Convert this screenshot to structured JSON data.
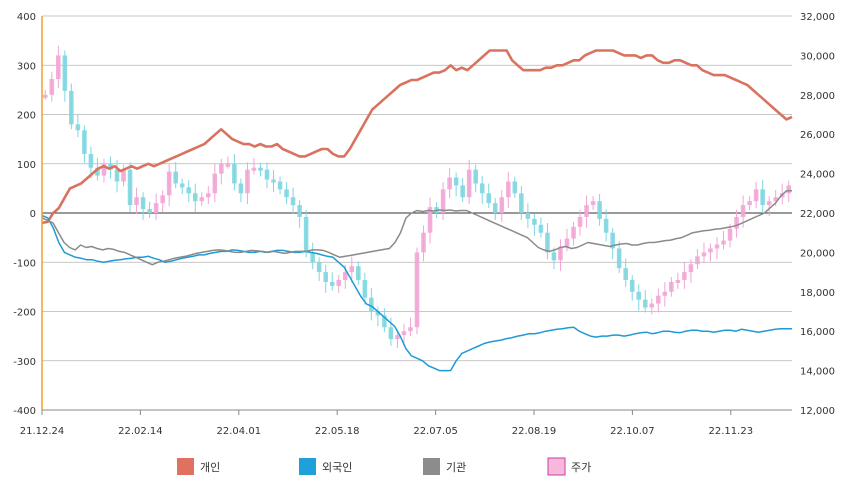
{
  "chart_data": {
    "type": "line",
    "x_tick_labels": [
      "21.12.24",
      "22.02.14",
      "22.04.01",
      "22.05.18",
      "22.07.05",
      "22.08.19",
      "22.10.07",
      "22.11.23"
    ],
    "y_left": {
      "ticks": [
        "400",
        "300",
        "200",
        "100",
        "0",
        "-100",
        "-200",
        "-300",
        "-400"
      ],
      "range": [
        -400,
        400
      ]
    },
    "y_right": {
      "ticks": [
        "32,000",
        "30,000",
        "28,000",
        "26,000",
        "24,000",
        "22,000",
        "20,000",
        "18,000",
        "16,000",
        "14,000",
        "12,000"
      ],
      "range": [
        12000,
        32000
      ]
    },
    "grid": true,
    "legend": {
      "placement": "bottom",
      "items": [
        {
          "label": "개인",
          "color": "#e07060"
        },
        {
          "label": "외국인",
          "color": "#1fa0d8"
        },
        {
          "label": "기관",
          "color": "#8c8c8c"
        },
        {
          "label": "주가",
          "color": "#f7b8dc"
        }
      ]
    },
    "series": [
      {
        "name": "개인",
        "axis": "left",
        "color": "#d9725f",
        "values": [
          -20,
          -18,
          0,
          10,
          30,
          50,
          55,
          60,
          70,
          80,
          90,
          95,
          90,
          95,
          85,
          90,
          95,
          90,
          95,
          100,
          95,
          100,
          105,
          110,
          115,
          120,
          125,
          130,
          135,
          140,
          150,
          160,
          170,
          160,
          150,
          145,
          140,
          140,
          135,
          140,
          135,
          135,
          140,
          130,
          125,
          120,
          115,
          115,
          120,
          125,
          130,
          130,
          120,
          115,
          115,
          130,
          150,
          170,
          190,
          210,
          220,
          230,
          240,
          250,
          260,
          265,
          270,
          270,
          275,
          280,
          285,
          285,
          290,
          300,
          290,
          295,
          290,
          300,
          310,
          320,
          330,
          330,
          330,
          330,
          310,
          300,
          290,
          290,
          290,
          290,
          295,
          295,
          300,
          300,
          305,
          310,
          310,
          320,
          325,
          330,
          330,
          330,
          330,
          325,
          320,
          320,
          320,
          315,
          320,
          320,
          310,
          305,
          305,
          310,
          310,
          305,
          300,
          300,
          290,
          285,
          280,
          280,
          280,
          275,
          270,
          265,
          260,
          250,
          240,
          230,
          220,
          210,
          200,
          190,
          195
        ]
      },
      {
        "name": "외국인",
        "axis": "left",
        "color": "#1e9bd5",
        "values": [
          -5,
          -10,
          -30,
          -60,
          -80,
          -85,
          -90,
          -92,
          -95,
          -95,
          -98,
          -100,
          -98,
          -96,
          -95,
          -93,
          -92,
          -90,
          -90,
          -88,
          -92,
          -95,
          -100,
          -98,
          -95,
          -92,
          -90,
          -88,
          -85,
          -85,
          -82,
          -80,
          -78,
          -78,
          -75,
          -76,
          -78,
          -80,
          -80,
          -78,
          -80,
          -78,
          -76,
          -76,
          -78,
          -80,
          -80,
          -78,
          -80,
          -82,
          -85,
          -88,
          -90,
          -100,
          -110,
          -130,
          -150,
          -170,
          -185,
          -190,
          -200,
          -210,
          -220,
          -230,
          -250,
          -275,
          -290,
          -295,
          -300,
          -310,
          -315,
          -320,
          -320,
          -320,
          -300,
          -285,
          -280,
          -275,
          -270,
          -265,
          -262,
          -260,
          -258,
          -255,
          -253,
          -250,
          -248,
          -245,
          -245,
          -243,
          -240,
          -238,
          -236,
          -235,
          -233,
          -232,
          -240,
          -245,
          -250,
          -252,
          -250,
          -250,
          -248,
          -248,
          -250,
          -248,
          -245,
          -243,
          -242,
          -245,
          -243,
          -240,
          -240,
          -242,
          -243,
          -240,
          -238,
          -238,
          -240,
          -240,
          -242,
          -240,
          -238,
          -238,
          -240,
          -236,
          -238,
          -240,
          -242,
          -240,
          -238,
          -236,
          -235,
          -235,
          -235
        ]
      },
      {
        "name": "기관",
        "axis": "left",
        "color": "#8a8a8a",
        "values": [
          -10,
          -15,
          -20,
          -40,
          -60,
          -70,
          -75,
          -65,
          -70,
          -68,
          -72,
          -75,
          -72,
          -74,
          -78,
          -80,
          -85,
          -90,
          -95,
          -100,
          -105,
          -100,
          -98,
          -95,
          -92,
          -90,
          -88,
          -85,
          -82,
          -80,
          -78,
          -76,
          -75,
          -76,
          -78,
          -80,
          -80,
          -78,
          -76,
          -77,
          -78,
          -80,
          -78,
          -80,
          -82,
          -80,
          -78,
          -78,
          -78,
          -75,
          -75,
          -76,
          -80,
          -85,
          -90,
          -88,
          -86,
          -84,
          -82,
          -80,
          -78,
          -76,
          -74,
          -72,
          -60,
          -40,
          -10,
          0,
          5,
          3,
          5,
          4,
          6,
          5,
          6,
          4,
          5,
          5,
          0,
          -5,
          -10,
          -15,
          -20,
          -25,
          -30,
          -35,
          -40,
          -45,
          -50,
          -60,
          -70,
          -75,
          -78,
          -75,
          -70,
          -68,
          -72,
          -70,
          -65,
          -60,
          -62,
          -64,
          -66,
          -68,
          -65,
          -63,
          -62,
          -65,
          -65,
          -62,
          -60,
          -60,
          -58,
          -56,
          -55,
          -52,
          -50,
          -45,
          -40,
          -38,
          -36,
          -35,
          -33,
          -32,
          -30,
          -28,
          -25,
          -20,
          -15,
          -10,
          -5,
          0,
          10,
          20,
          35,
          45,
          45
        ]
      },
      {
        "name": "주가",
        "axis": "right",
        "type": "candlestick",
        "color": "#f2a5d5",
        "color_secondary": "#7fd6e0",
        "values": [
          28000,
          28800,
          30000,
          28200,
          26500,
          26200,
          25000,
          24300,
          23900,
          24500,
          24200,
          23600,
          24200,
          22400,
          22800,
          22200,
          22000,
          22500,
          22900,
          24100,
          23500,
          23300,
          23000,
          22600,
          22800,
          23000,
          24000,
          24500,
          24500,
          23500,
          23000,
          24200,
          24300,
          24200,
          23700,
          23600,
          23200,
          22800,
          22400,
          21800,
          20000,
          19500,
          19000,
          18500,
          18300,
          18600,
          19000,
          19300,
          18600,
          17700,
          17000,
          16800,
          16200,
          15600,
          15800,
          16000,
          16200,
          20000,
          21000,
          22300,
          22000,
          23200,
          23800,
          23400,
          22800,
          24200,
          23500,
          23000,
          22500,
          22000,
          22800,
          23600,
          23000,
          22000,
          21700,
          21400,
          21000,
          20000,
          19600,
          20300,
          20700,
          21300,
          21800,
          22400,
          22600,
          21700,
          21000,
          20200,
          19200,
          18600,
          18000,
          17600,
          17200,
          17400,
          17800,
          18000,
          18500,
          18600,
          19000,
          19400,
          19800,
          20000,
          20200,
          20400,
          20600,
          21200,
          21800,
          22400,
          22600,
          23200,
          22400,
          22600,
          22800,
          23000,
          23400
        ]
      }
    ]
  }
}
